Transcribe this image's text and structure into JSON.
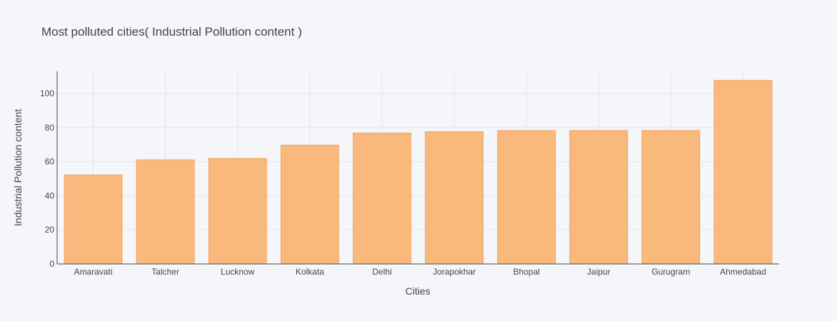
{
  "chart_data": {
    "type": "bar",
    "title": "Most polluted cities( Industrial Pollution content )",
    "xlabel": "Cities",
    "ylabel": "Industrial Pollution content",
    "categories": [
      "Amaravati",
      "Talcher",
      "Lucknow",
      "Kolkata",
      "Delhi",
      "Jorapokhar",
      "Bhopal",
      "Jaipur",
      "Gurugram",
      "Ahmedabad"
    ],
    "values": [
      52.2,
      61.1,
      61.9,
      69.7,
      76.8,
      77.6,
      78.2,
      78.3,
      78.3,
      107.7
    ],
    "ylim": [
      0,
      113
    ],
    "yticks": [
      0,
      20,
      40,
      60,
      80,
      100
    ],
    "grid": true,
    "bar_color": "#f9b97d",
    "bar_edge_color": "#f5a35c"
  }
}
